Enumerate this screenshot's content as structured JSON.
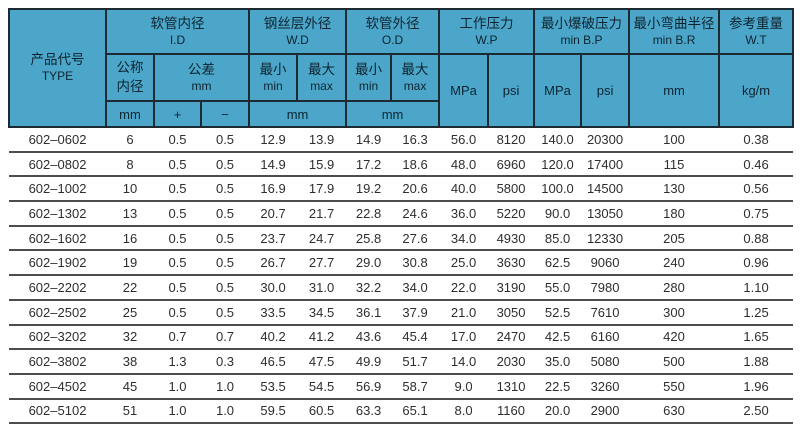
{
  "colors": {
    "header-bg": "#4ba6c9",
    "header-border": "#1c2b33",
    "header-text": "#0d2430",
    "row-line": "#4d4d4d",
    "body-text": "#2e2e2e",
    "page-bg": "#ffffff"
  },
  "header": {
    "type_col": {
      "zh": "产品代号",
      "en": "TYPE"
    },
    "groups": [
      {
        "zh": "软管内径",
        "en": "I.D"
      },
      {
        "zh": "钢丝层外径",
        "en": "W.D"
      },
      {
        "zh": "软管外径",
        "en": "O.D"
      },
      {
        "zh": "工作压力",
        "en": "W.P"
      },
      {
        "zh": "最小爆破压力",
        "en": "min B.P"
      },
      {
        "zh": "最小弯曲半径",
        "en": "min B.R"
      },
      {
        "zh": "参考重量",
        "en": "W.T"
      }
    ],
    "sub": {
      "nominal_line1": "公称",
      "nominal_line2": "内径",
      "tolerance_line1": "公差",
      "tolerance_line2": "mm",
      "min_line1": "最小",
      "min_line2": "min",
      "max_line1": "最大",
      "max_line2": "max",
      "mpa": "MPa",
      "psi": "psi",
      "mm": "mm",
      "kgm": "kg/m",
      "plus": "+",
      "minus": "−"
    }
  },
  "row_keys": [
    "type",
    "nominal_id_mm",
    "tol_plus",
    "tol_minus",
    "wd_min",
    "wd_max",
    "od_min",
    "od_max",
    "wp_mpa",
    "wp_psi",
    "bp_mpa",
    "bp_psi",
    "br_mm",
    "wt_kgm"
  ],
  "rows": [
    [
      "602–0602",
      "6",
      "0.5",
      "0.5",
      "12.9",
      "13.9",
      "14.9",
      "16.3",
      "56.0",
      "8120",
      "140.0",
      "20300",
      "100",
      "0.38"
    ],
    [
      "602–0802",
      "8",
      "0.5",
      "0.5",
      "14.9",
      "15.9",
      "17.2",
      "18.6",
      "48.0",
      "6960",
      "120.0",
      "17400",
      "115",
      "0.46"
    ],
    [
      "602–1002",
      "10",
      "0.5",
      "0.5",
      "16.9",
      "17.9",
      "19.2",
      "20.6",
      "40.0",
      "5800",
      "100.0",
      "14500",
      "130",
      "0.56"
    ],
    [
      "602–1302",
      "13",
      "0.5",
      "0.5",
      "20.7",
      "21.7",
      "22.8",
      "24.6",
      "36.0",
      "5220",
      "90.0",
      "13050",
      "180",
      "0.75"
    ],
    [
      "602–1602",
      "16",
      "0.5",
      "0.5",
      "23.7",
      "24.7",
      "25.8",
      "27.6",
      "34.0",
      "4930",
      "85.0",
      "12330",
      "205",
      "0.88"
    ],
    [
      "602–1902",
      "19",
      "0.5",
      "0.5",
      "26.7",
      "27.7",
      "29.0",
      "30.8",
      "25.0",
      "3630",
      "62.5",
      "9060",
      "240",
      "0.96"
    ],
    [
      "602–2202",
      "22",
      "0.5",
      "0.5",
      "30.0",
      "31.0",
      "32.2",
      "34.0",
      "22.0",
      "3190",
      "55.0",
      "7980",
      "280",
      "1.10"
    ],
    [
      "602–2502",
      "25",
      "0.5",
      "0.5",
      "33.5",
      "34.5",
      "36.1",
      "37.9",
      "21.0",
      "3050",
      "52.5",
      "7610",
      "300",
      "1.25"
    ],
    [
      "602–3202",
      "32",
      "0.7",
      "0.7",
      "40.2",
      "41.2",
      "43.6",
      "45.4",
      "17.0",
      "2470",
      "42.5",
      "6160",
      "420",
      "1.65"
    ],
    [
      "602–3802",
      "38",
      "1.3",
      "0.3",
      "46.5",
      "47.5",
      "49.9",
      "51.7",
      "14.0",
      "2030",
      "35.0",
      "5080",
      "500",
      "1.88"
    ],
    [
      "602–4502",
      "45",
      "1.0",
      "1.0",
      "53.5",
      "54.5",
      "56.9",
      "58.7",
      "9.0",
      "1310",
      "22.5",
      "3260",
      "550",
      "1.96"
    ],
    [
      "602–5102",
      "51",
      "1.0",
      "1.0",
      "59.5",
      "60.5",
      "63.3",
      "65.1",
      "8.0",
      "1160",
      "20.0",
      "2900",
      "630",
      "2.50"
    ]
  ]
}
